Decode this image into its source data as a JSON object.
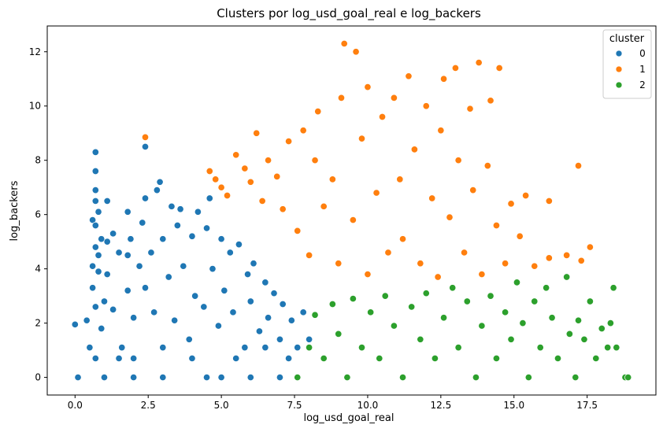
{
  "chart_data": {
    "type": "scatter",
    "title": "Clusters por log_usd_goal_real e log_backers",
    "xlabel": "log_usd_goal_real",
    "ylabel": "log_backers",
    "xlim": [
      -0.95,
      19.85
    ],
    "ylim": [
      -0.65,
      12.95
    ],
    "xticks": [
      0.0,
      2.5,
      5.0,
      7.5,
      10.0,
      12.5,
      15.0,
      17.5
    ],
    "xtick_labels": [
      "0.0",
      "2.5",
      "5.0",
      "7.5",
      "10.0",
      "12.5",
      "15.0",
      "17.5"
    ],
    "yticks": [
      0,
      2,
      4,
      6,
      8,
      10,
      12
    ],
    "ytick_labels": [
      "0",
      "2",
      "4",
      "6",
      "8",
      "10",
      "12"
    ],
    "grid": false,
    "legend": {
      "title": "cluster",
      "placement": "top-right"
    },
    "series": [
      {
        "name": "0",
        "color": "#1f77b4",
        "points": [
          [
            0.0,
            1.95
          ],
          [
            0.1,
            0.0
          ],
          [
            0.4,
            2.1
          ],
          [
            0.5,
            1.1
          ],
          [
            0.6,
            5.8
          ],
          [
            0.6,
            4.1
          ],
          [
            0.6,
            3.3
          ],
          [
            0.7,
            8.3
          ],
          [
            0.7,
            7.6
          ],
          [
            0.7,
            6.9
          ],
          [
            0.7,
            6.5
          ],
          [
            0.7,
            5.6
          ],
          [
            0.7,
            4.8
          ],
          [
            0.7,
            2.6
          ],
          [
            0.7,
            0.7
          ],
          [
            0.8,
            6.1
          ],
          [
            0.8,
            4.5
          ],
          [
            0.8,
            3.9
          ],
          [
            0.9,
            5.1
          ],
          [
            0.9,
            1.8
          ],
          [
            1.0,
            2.8
          ],
          [
            1.1,
            6.5
          ],
          [
            1.1,
            5.0
          ],
          [
            1.1,
            3.8
          ],
          [
            1.3,
            5.3
          ],
          [
            1.3,
            2.5
          ],
          [
            1.5,
            4.6
          ],
          [
            1.6,
            1.1
          ],
          [
            1.8,
            6.1
          ],
          [
            1.8,
            4.5
          ],
          [
            1.8,
            3.2
          ],
          [
            1.9,
            5.1
          ],
          [
            2.0,
            2.2
          ],
          [
            2.2,
            4.1
          ],
          [
            2.3,
            5.7
          ],
          [
            2.4,
            8.5
          ],
          [
            2.4,
            6.6
          ],
          [
            2.4,
            3.3
          ],
          [
            2.6,
            4.6
          ],
          [
            2.7,
            2.4
          ],
          [
            2.8,
            6.9
          ],
          [
            2.9,
            7.2
          ],
          [
            3.0,
            5.1
          ],
          [
            3.2,
            3.7
          ],
          [
            3.3,
            6.3
          ],
          [
            3.4,
            2.1
          ],
          [
            3.5,
            5.6
          ],
          [
            3.6,
            6.2
          ],
          [
            3.7,
            4.1
          ],
          [
            3.9,
            1.4
          ],
          [
            4.0,
            5.2
          ],
          [
            4.1,
            3.0
          ],
          [
            4.2,
            6.1
          ],
          [
            4.4,
            2.6
          ],
          [
            4.5,
            5.5
          ],
          [
            4.6,
            6.6
          ],
          [
            4.7,
            4.0
          ],
          [
            4.9,
            1.9
          ],
          [
            5.0,
            5.1
          ],
          [
            5.1,
            3.2
          ],
          [
            5.3,
            4.6
          ],
          [
            5.4,
            2.4
          ],
          [
            5.6,
            4.9
          ],
          [
            5.8,
            1.1
          ],
          [
            5.9,
            3.8
          ],
          [
            6.0,
            2.8
          ],
          [
            6.1,
            4.2
          ],
          [
            6.3,
            1.7
          ],
          [
            6.5,
            3.5
          ],
          [
            6.6,
            2.2
          ],
          [
            6.8,
            3.1
          ],
          [
            7.0,
            1.4
          ],
          [
            7.1,
            2.7
          ],
          [
            7.3,
            0.7
          ],
          [
            7.4,
            2.1
          ],
          [
            7.6,
            1.1
          ],
          [
            7.8,
            2.4
          ],
          [
            8.0,
            1.4
          ],
          [
            4.0,
            0.7
          ],
          [
            3.0,
            1.1
          ],
          [
            2.0,
            0.7
          ],
          [
            1.5,
            0.7
          ],
          [
            5.0,
            0.0
          ],
          [
            6.0,
            0.0
          ],
          [
            7.0,
            0.0
          ],
          [
            3.0,
            0.0
          ],
          [
            2.0,
            0.0
          ],
          [
            1.0,
            0.0
          ],
          [
            4.5,
            0.0
          ],
          [
            6.5,
            1.1
          ],
          [
            5.5,
            0.7
          ]
        ]
      },
      {
        "name": "1",
        "color": "#ff7f0e",
        "points": [
          [
            2.4,
            8.85
          ],
          [
            4.6,
            7.6
          ],
          [
            4.8,
            7.3
          ],
          [
            5.0,
            7.0
          ],
          [
            5.2,
            6.7
          ],
          [
            5.5,
            8.2
          ],
          [
            5.8,
            7.7
          ],
          [
            6.0,
            7.2
          ],
          [
            6.2,
            9.0
          ],
          [
            6.4,
            6.5
          ],
          [
            6.6,
            8.0
          ],
          [
            6.9,
            7.4
          ],
          [
            7.1,
            6.2
          ],
          [
            7.3,
            8.7
          ],
          [
            7.6,
            5.4
          ],
          [
            7.8,
            9.1
          ],
          [
            8.0,
            4.5
          ],
          [
            8.2,
            8.0
          ],
          [
            8.3,
            9.8
          ],
          [
            8.5,
            6.3
          ],
          [
            8.8,
            7.3
          ],
          [
            9.0,
            4.2
          ],
          [
            9.1,
            10.3
          ],
          [
            9.2,
            12.3
          ],
          [
            9.5,
            5.8
          ],
          [
            9.6,
            12.0
          ],
          [
            9.8,
            8.8
          ],
          [
            10.0,
            3.8
          ],
          [
            10.0,
            10.7
          ],
          [
            10.3,
            6.8
          ],
          [
            10.5,
            9.6
          ],
          [
            10.7,
            4.6
          ],
          [
            10.9,
            10.3
          ],
          [
            11.1,
            7.3
          ],
          [
            11.2,
            5.1
          ],
          [
            11.4,
            11.1
          ],
          [
            11.6,
            8.4
          ],
          [
            11.8,
            4.2
          ],
          [
            12.0,
            10.0
          ],
          [
            12.2,
            6.6
          ],
          [
            12.4,
            3.7
          ],
          [
            12.5,
            9.1
          ],
          [
            12.6,
            11.0
          ],
          [
            12.8,
            5.9
          ],
          [
            13.0,
            11.4
          ],
          [
            13.1,
            8.0
          ],
          [
            13.3,
            4.6
          ],
          [
            13.5,
            9.9
          ],
          [
            13.6,
            6.9
          ],
          [
            13.8,
            11.6
          ],
          [
            13.9,
            3.8
          ],
          [
            14.1,
            7.8
          ],
          [
            14.2,
            10.2
          ],
          [
            14.4,
            5.6
          ],
          [
            14.5,
            11.4
          ],
          [
            14.7,
            4.2
          ],
          [
            14.9,
            6.4
          ],
          [
            15.2,
            5.2
          ],
          [
            15.4,
            6.7
          ],
          [
            15.7,
            4.1
          ],
          [
            16.2,
            6.5
          ],
          [
            16.2,
            4.4
          ],
          [
            16.8,
            4.5
          ],
          [
            17.2,
            7.8
          ],
          [
            17.3,
            4.3
          ],
          [
            17.6,
            4.8
          ]
        ]
      },
      {
        "name": "2",
        "color": "#2ca02c",
        "points": [
          [
            7.6,
            0.0
          ],
          [
            8.0,
            1.1
          ],
          [
            8.2,
            2.3
          ],
          [
            8.5,
            0.7
          ],
          [
            8.8,
            2.7
          ],
          [
            9.0,
            1.6
          ],
          [
            9.3,
            0.0
          ],
          [
            9.5,
            2.9
          ],
          [
            9.8,
            1.1
          ],
          [
            10.1,
            2.4
          ],
          [
            10.4,
            0.7
          ],
          [
            10.6,
            3.0
          ],
          [
            10.9,
            1.9
          ],
          [
            11.2,
            0.0
          ],
          [
            11.5,
            2.6
          ],
          [
            11.8,
            1.4
          ],
          [
            12.0,
            3.1
          ],
          [
            12.3,
            0.7
          ],
          [
            12.6,
            2.2
          ],
          [
            12.9,
            3.3
          ],
          [
            13.1,
            1.1
          ],
          [
            13.4,
            2.8
          ],
          [
            13.7,
            0.0
          ],
          [
            13.9,
            1.9
          ],
          [
            14.2,
            3.0
          ],
          [
            14.4,
            0.7
          ],
          [
            14.7,
            2.4
          ],
          [
            14.9,
            1.4
          ],
          [
            15.1,
            3.5
          ],
          [
            15.3,
            2.0
          ],
          [
            15.5,
            0.0
          ],
          [
            15.7,
            2.8
          ],
          [
            15.9,
            1.1
          ],
          [
            16.1,
            3.3
          ],
          [
            16.3,
            2.2
          ],
          [
            16.5,
            0.7
          ],
          [
            16.8,
            3.7
          ],
          [
            16.9,
            1.6
          ],
          [
            17.1,
            0.0
          ],
          [
            17.2,
            2.1
          ],
          [
            17.4,
            1.4
          ],
          [
            17.6,
            2.8
          ],
          [
            17.8,
            0.7
          ],
          [
            18.0,
            1.8
          ],
          [
            18.2,
            1.1
          ],
          [
            18.3,
            2.0
          ],
          [
            18.4,
            3.3
          ],
          [
            18.5,
            1.1
          ],
          [
            18.8,
            0.0
          ],
          [
            18.9,
            0.0
          ]
        ]
      }
    ]
  }
}
